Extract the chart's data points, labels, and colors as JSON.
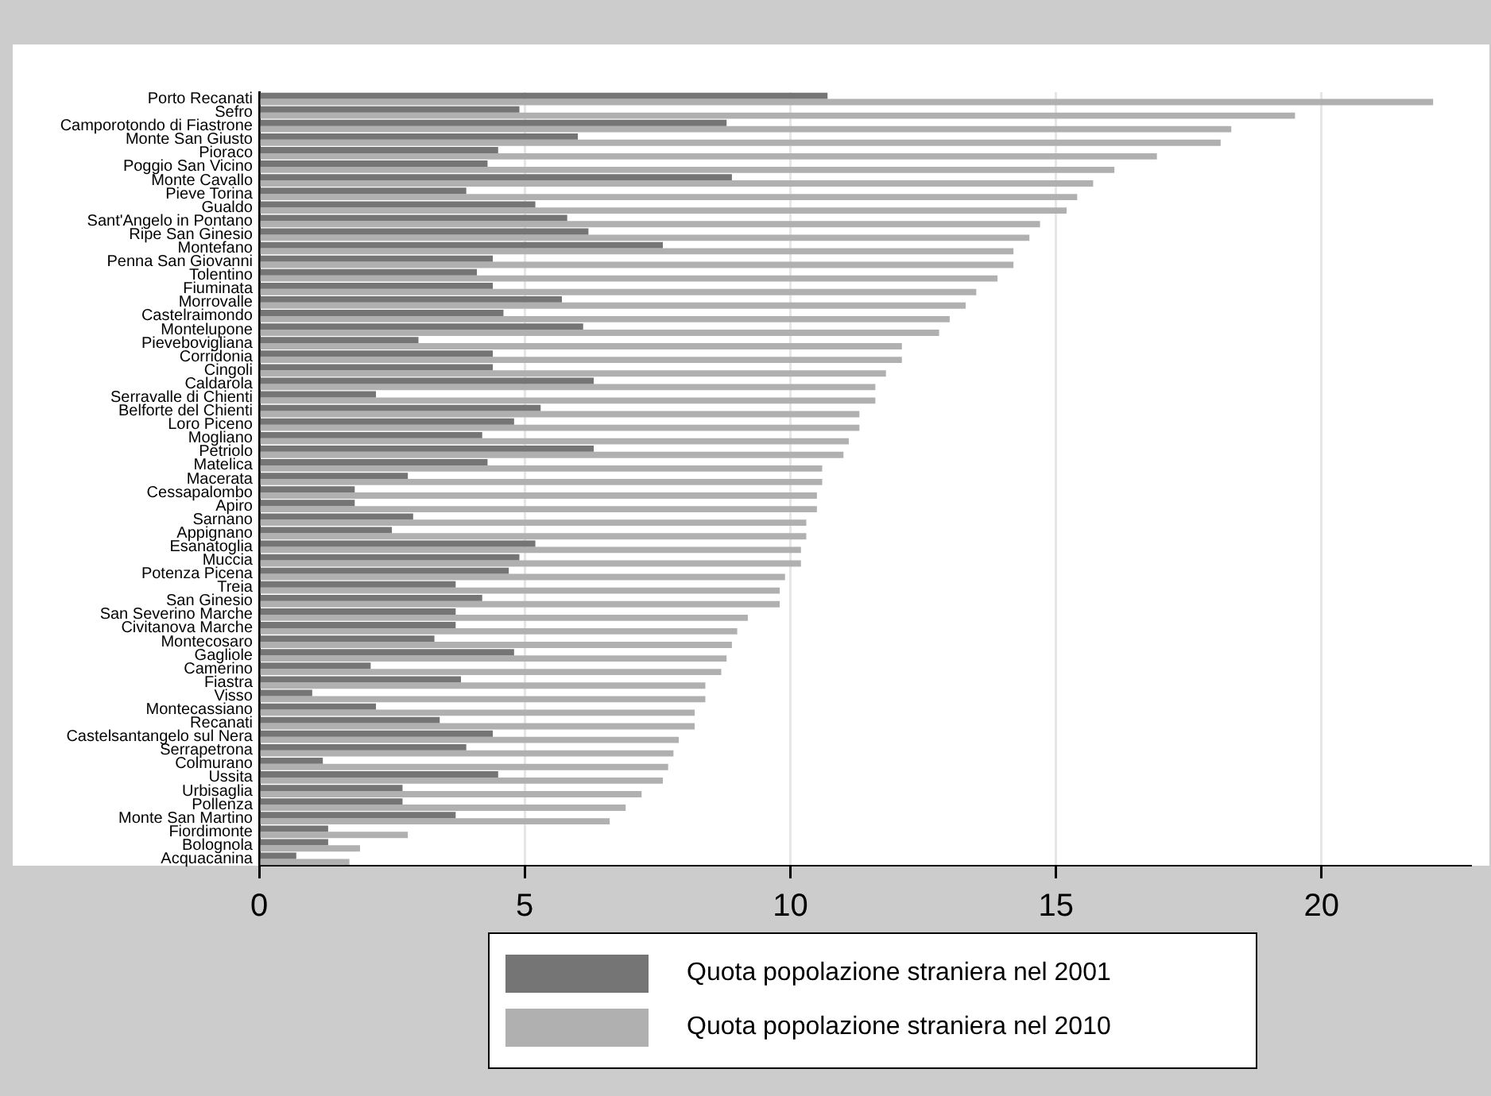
{
  "chart_data": {
    "type": "bar",
    "orientation": "horizontal",
    "categories": [
      "Porto Recanati",
      "Sefro",
      "Camporotondo di Fiastrone",
      "Monte San Giusto",
      "Pioraco",
      "Poggio San Vicino",
      "Monte Cavallo",
      "Pieve Torina",
      "Gualdo",
      "Sant'Angelo in Pontano",
      "Ripe San Ginesio",
      "Montefano",
      "Penna San Giovanni",
      "Tolentino",
      "Fiuminata",
      "Morrovalle",
      "Castelraimondo",
      "Montelupone",
      "Pievebovigliana",
      "Corridonia",
      "Cingoli",
      "Caldarola",
      "Serravalle di Chienti",
      "Belforte del Chienti",
      "Loro Piceno",
      "Mogliano",
      "Petriolo",
      "Matelica",
      "Macerata",
      "Cessapalombo",
      "Apiro",
      "Sarnano",
      "Appignano",
      "Esanatoglia",
      "Muccia",
      "Potenza Picena",
      "Treia",
      "San Ginesio",
      "San Severino Marche",
      "Civitanova Marche",
      "Montecosaro",
      "Gagliole",
      "Camerino",
      "Fiastra",
      "Visso",
      "Montecassiano",
      "Recanati",
      "Castelsantangelo sul Nera",
      "Serrapetrona",
      "Colmurano",
      "Ussita",
      "Urbisaglia",
      "Pollenza",
      "Monte San Martino",
      "Fiordimonte",
      "Bolognola",
      "Acquacanina"
    ],
    "series": [
      {
        "name": "Quota popolazione straniera nel 2001",
        "color": "#757575",
        "values": [
          10.7,
          4.9,
          8.8,
          6.0,
          4.5,
          4.3,
          8.9,
          3.9,
          5.2,
          5.8,
          6.2,
          7.6,
          4.4,
          4.1,
          4.4,
          5.7,
          4.6,
          6.1,
          3.0,
          4.4,
          4.4,
          6.3,
          2.2,
          5.3,
          4.8,
          4.2,
          6.3,
          4.3,
          2.8,
          1.8,
          1.8,
          2.9,
          2.5,
          5.2,
          4.9,
          4.7,
          3.7,
          4.2,
          3.7,
          3.7,
          3.3,
          4.8,
          2.1,
          3.8,
          1.0,
          2.2,
          3.4,
          4.4,
          3.9,
          1.2,
          4.5,
          2.7,
          2.7,
          3.7,
          1.3,
          1.3,
          0.7
        ]
      },
      {
        "name": "Quota popolazione straniera nel 2010",
        "color": "#b0b0b0",
        "values": [
          22.1,
          19.5,
          18.3,
          18.1,
          16.9,
          16.1,
          15.7,
          15.4,
          15.2,
          14.7,
          14.5,
          14.2,
          14.2,
          13.9,
          13.5,
          13.3,
          13.0,
          12.8,
          12.1,
          12.1,
          11.8,
          11.6,
          11.6,
          11.3,
          11.3,
          11.1,
          11.0,
          10.6,
          10.6,
          10.5,
          10.5,
          10.3,
          10.3,
          10.2,
          10.2,
          9.9,
          9.8,
          9.8,
          9.2,
          9.0,
          8.9,
          8.8,
          8.7,
          8.4,
          8.4,
          8.2,
          8.2,
          7.9,
          7.8,
          7.7,
          7.6,
          7.2,
          6.9,
          6.6,
          2.8,
          1.9,
          1.7
        ]
      }
    ],
    "xlim": [
      0,
      22.8
    ],
    "xticks": [
      0,
      5,
      10,
      15,
      20
    ],
    "grid": "x",
    "legend": "bottom"
  }
}
